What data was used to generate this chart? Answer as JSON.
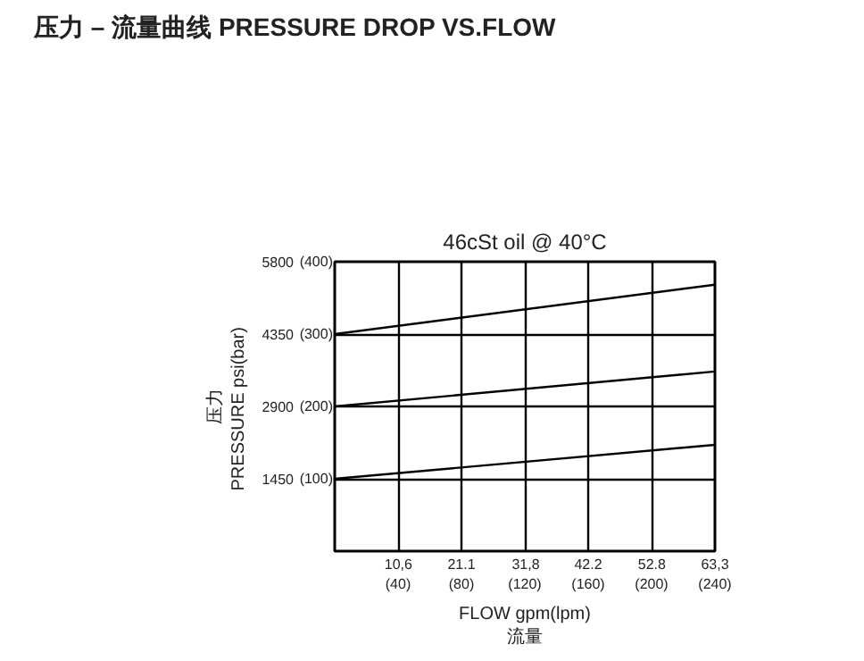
{
  "chart_data": {
    "type": "line",
    "title": "压力 – 流量曲线 PRESSURE DROP VS.FLOW",
    "subtitle": "46cSt oil @ 40°C",
    "xlabel": "FLOW gpm(lpm)\n流量",
    "ylabel": "压力\nPRESSURE  psi(bar)",
    "x": [
      0,
      63.3
    ],
    "series": [
      {
        "color": "#000000",
        "values": [
          4350,
          5340
        ]
      },
      {
        "color": "#000000",
        "values": [
          2900,
          3600
        ]
      },
      {
        "color": "#000000",
        "values": [
          1450,
          2130
        ]
      }
    ],
    "xlim": [
      0,
      63.3
    ],
    "ylim": [
      0,
      5800
    ],
    "xticks": [
      {
        "value": 10.6,
        "label": "10,6"
      },
      21.1,
      {
        "value": 31.8,
        "label": "31,8"
      },
      42.2,
      52.8,
      {
        "value": 63.3,
        "label": "63,3"
      }
    ],
    "x2lim": [
      0,
      240
    ],
    "x2ticks": [
      {
        "value": 40,
        "label": "(40)"
      },
      {
        "value": 80,
        "label": "(80)"
      },
      {
        "value": 120,
        "label": "(120)"
      },
      {
        "value": 160,
        "label": "(160)"
      },
      {
        "value": 200,
        "label": "(200)"
      },
      {
        "value": 240,
        "label": "(240)"
      }
    ],
    "yticks": [
      1450,
      2900,
      4350,
      5800
    ],
    "y2lim": [
      0,
      400
    ],
    "y2ticks": [
      {
        "value": 100,
        "label": "(100)"
      },
      {
        "value": 200,
        "label": "(200)"
      },
      {
        "value": 300,
        "label": "(300)"
      },
      {
        "value": 400,
        "label": "(400)"
      }
    ],
    "grid": true,
    "marker": "none",
    "line_style": "solid"
  }
}
